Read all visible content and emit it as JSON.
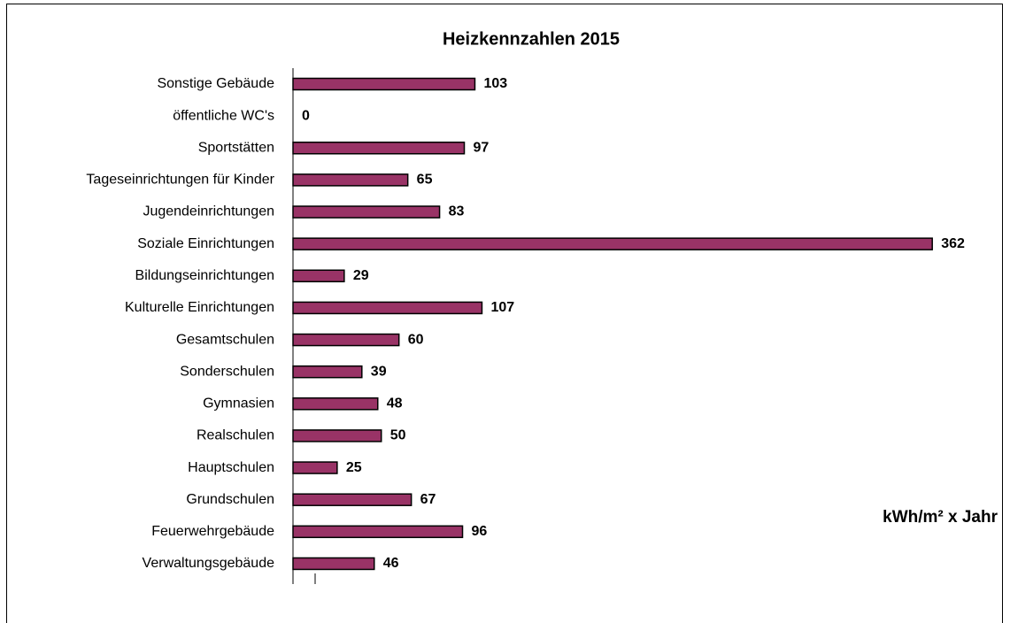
{
  "chart_data": {
    "type": "bar",
    "orientation": "horizontal",
    "title": "Heizkennzahlen 2015",
    "unit_label": "kWh/m² x Jahr",
    "categories": [
      "Sonstige Gebäude",
      "öffentliche WC's",
      "Sportstätten",
      "Tageseinrichtungen für Kinder",
      "Jugendeinrichtungen",
      "Soziale Einrichtungen",
      "Bildungseinrichtungen",
      "Kulturelle Einrichtungen",
      "Gesamtschulen",
      "Sonderschulen",
      "Gymnasien",
      "Realschulen",
      "Hauptschulen",
      "Grundschulen",
      "Feuerwehrgebäude",
      "Verwaltungsgebäude"
    ],
    "values": [
      103,
      0,
      97,
      65,
      83,
      362,
      29,
      107,
      60,
      39,
      48,
      50,
      25,
      67,
      96,
      46
    ],
    "color": "#993366",
    "xlim": [
      0,
      400
    ]
  }
}
